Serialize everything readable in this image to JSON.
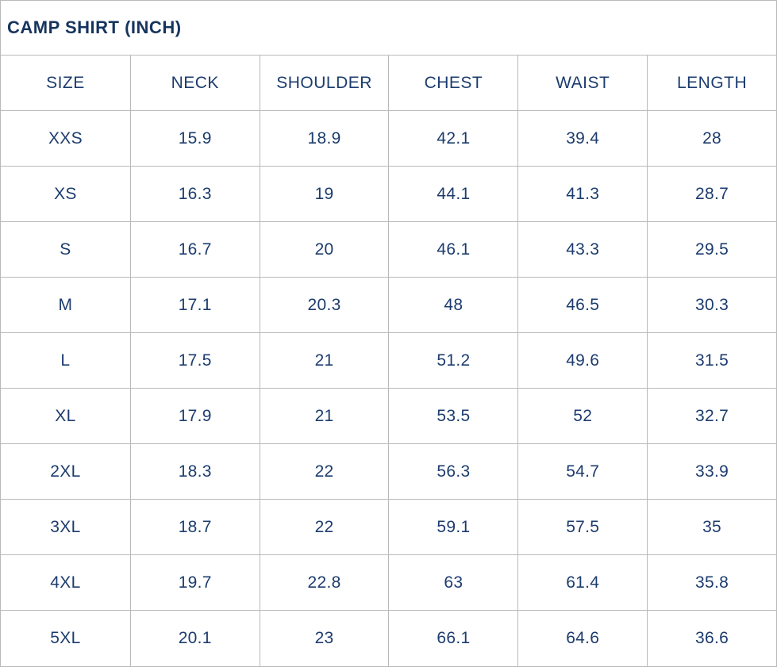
{
  "title": "CAMP SHIRT (INCH)",
  "colors": {
    "text_navy": "#1c3c6e",
    "title_navy": "#16345e",
    "border_gray": "#b9b9b9",
    "background": "#ffffff"
  },
  "chart_data": {
    "type": "table",
    "title": "CAMP SHIRT (INCH)",
    "columns": [
      "SIZE",
      "NECK",
      "SHOULDER",
      "CHEST",
      "WAIST",
      "LENGTH"
    ],
    "rows": [
      {
        "cells": [
          "XXS",
          "15.9",
          "18.9",
          "42.1",
          "39.4",
          "28"
        ]
      },
      {
        "cells": [
          "XS",
          "16.3",
          "19",
          "44.1",
          "41.3",
          "28.7"
        ]
      },
      {
        "cells": [
          "S",
          "16.7",
          "20",
          "46.1",
          "43.3",
          "29.5"
        ]
      },
      {
        "cells": [
          "M",
          "17.1",
          "20.3",
          "48",
          "46.5",
          "30.3"
        ]
      },
      {
        "cells": [
          "L",
          "17.5",
          "21",
          "51.2",
          "49.6",
          "31.5"
        ]
      },
      {
        "cells": [
          "XL",
          "17.9",
          "21",
          "53.5",
          "52",
          "32.7"
        ]
      },
      {
        "cells": [
          "2XL",
          "18.3",
          "22",
          "56.3",
          "54.7",
          "33.9"
        ]
      },
      {
        "cells": [
          "3XL",
          "18.7",
          "22",
          "59.1",
          "57.5",
          "35"
        ]
      },
      {
        "cells": [
          "4XL",
          "19.7",
          "22.8",
          "63",
          "61.4",
          "35.8"
        ]
      },
      {
        "cells": [
          "5XL",
          "20.1",
          "23",
          "66.1",
          "64.6",
          "36.6"
        ]
      }
    ]
  }
}
